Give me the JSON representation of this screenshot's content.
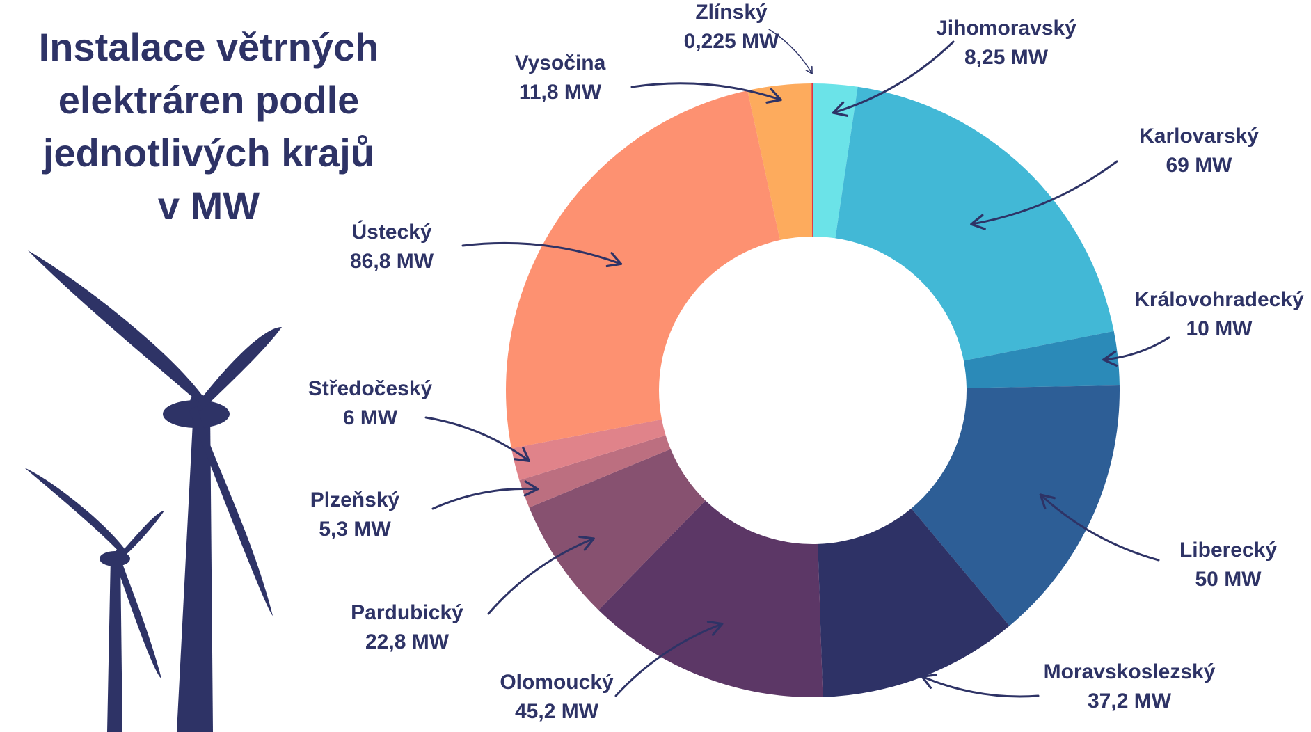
{
  "title_lines": [
    "Instalace větrných",
    "elektráren podle",
    "jednotlivých krajů",
    "v MW"
  ],
  "colors": {
    "text": "#2e3366",
    "turbine": "#2e3366"
  },
  "chart_data": {
    "type": "pie",
    "donut": true,
    "title": "Instalace větrných elektráren podle jednotlivých krajů v MW",
    "unit": "MW",
    "slices": [
      {
        "label": "Jihomoravský",
        "value_label": "8,25 MW",
        "value": 8.25,
        "color": "#6be3e8"
      },
      {
        "label": "Karlovarský",
        "value_label": "69 MW",
        "value": 69,
        "color": "#42b8d6"
      },
      {
        "label": "Královohradecký",
        "value_label": "10 MW",
        "value": 10,
        "color": "#2b8ab8"
      },
      {
        "label": "Liberecký",
        "value_label": "50 MW",
        "value": 50,
        "color": "#2d5e96"
      },
      {
        "label": "Moravskoslezský",
        "value_label": "37,2 MW",
        "value": 37.2,
        "color": "#2e3266"
      },
      {
        "label": "Olomoucký",
        "value_label": "45,2 MW",
        "value": 45.2,
        "color": "#5c3766"
      },
      {
        "label": "Pardubický",
        "value_label": "22,8 MW",
        "value": 22.8,
        "color": "#875170"
      },
      {
        "label": "Plzeňský",
        "value_label": "5,3 MW",
        "value": 5.3,
        "color": "#bc6f80"
      },
      {
        "label": "Středočeský",
        "value_label": "6 MW",
        "value": 6,
        "color": "#e0838a"
      },
      {
        "label": "Ústecký",
        "value_label": "86,8 MW",
        "value": 86.8,
        "color": "#fd9171"
      },
      {
        "label": "Vysočina",
        "value_label": "11,8 MW",
        "value": 11.8,
        "color": "#fdab5d"
      },
      {
        "label": "Zlínský",
        "value_label": "0,225 MW",
        "value": 0.225,
        "color": "#e3343e"
      }
    ]
  }
}
